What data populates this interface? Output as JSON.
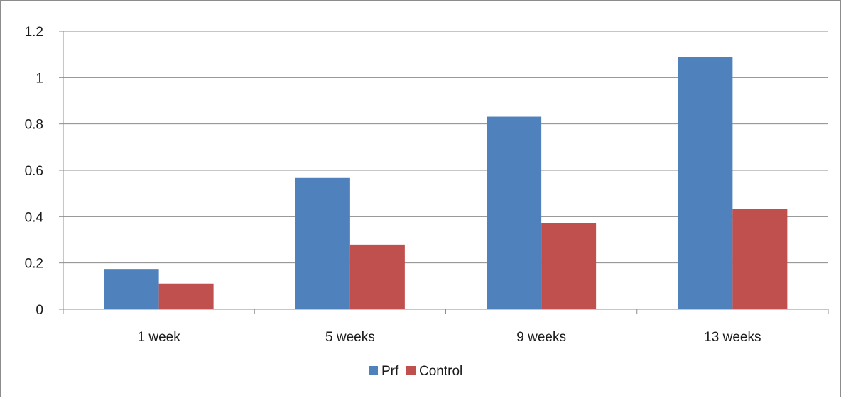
{
  "chart_data": {
    "type": "bar",
    "title": "",
    "xlabel": "",
    "ylabel": "",
    "categories": [
      "1 week",
      "5 weeks",
      "9 weeks",
      "13 weeks"
    ],
    "series": [
      {
        "name": "Prf",
        "color": "#4f81bd",
        "values": [
          0.174,
          0.567,
          0.831,
          1.088
        ]
      },
      {
        "name": "Control",
        "color": "#c0504d",
        "values": [
          0.111,
          0.279,
          0.372,
          0.434
        ]
      }
    ],
    "ylim": [
      0,
      1.2
    ],
    "yticks": [
      "0",
      "0.2",
      "0.4",
      "0.6",
      "0.8",
      "1",
      "1.2"
    ],
    "grid": true,
    "legend": "bottom"
  }
}
